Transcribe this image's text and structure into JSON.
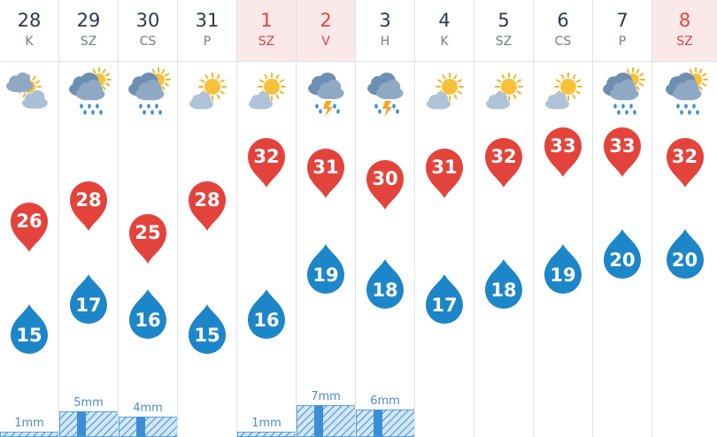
{
  "days": [
    {
      "date": "28",
      "dow": "K",
      "weekend": false,
      "icon": "cloud-sun-icon",
      "max": 26,
      "min": 15,
      "rain": "1mm",
      "rain_level": 0.16
    },
    {
      "date": "29",
      "dow": "SZ",
      "weekend": false,
      "icon": "cloud-sun-rain-icon",
      "max": 28,
      "min": 17,
      "rain": "5mm",
      "rain_level": 0.8
    },
    {
      "date": "30",
      "dow": "CS",
      "weekend": false,
      "icon": "cloud-sun-rain-icon",
      "max": 25,
      "min": 16,
      "rain": "4mm",
      "rain_level": 0.64
    },
    {
      "date": "31",
      "dow": "P",
      "weekend": false,
      "icon": "sun-cloud-icon",
      "max": 28,
      "min": 15,
      "rain": "",
      "rain_level": 0
    },
    {
      "date": "1",
      "dow": "SZ",
      "weekend": true,
      "icon": "sun-cloud-icon",
      "max": 32,
      "min": 16,
      "rain": "1mm",
      "rain_level": 0.16
    },
    {
      "date": "2",
      "dow": "V",
      "weekend": true,
      "icon": "thunderstorm-icon",
      "max": 31,
      "min": 19,
      "rain": "7mm",
      "rain_level": 1.0
    },
    {
      "date": "3",
      "dow": "H",
      "weekend": false,
      "icon": "thunderstorm-icon",
      "max": 30,
      "min": 18,
      "rain": "6mm",
      "rain_level": 0.86
    },
    {
      "date": "4",
      "dow": "K",
      "weekend": false,
      "icon": "sun-cloud-icon",
      "max": 31,
      "min": 17,
      "rain": "",
      "rain_level": 0
    },
    {
      "date": "5",
      "dow": "SZ",
      "weekend": false,
      "icon": "sun-cloud-icon",
      "max": 32,
      "min": 18,
      "rain": "",
      "rain_level": 0
    },
    {
      "date": "6",
      "dow": "CS",
      "weekend": false,
      "icon": "sun-cloud-icon",
      "max": 33,
      "min": 19,
      "rain": "",
      "rain_level": 0
    },
    {
      "date": "7",
      "dow": "P",
      "weekend": false,
      "icon": "cloud-sun-rain-icon",
      "max": 33,
      "min": 20,
      "rain": "",
      "rain_level": 0
    },
    {
      "date": "8",
      "dow": "SZ",
      "weekend": true,
      "icon": "cloud-sun-rain-icon",
      "max": 32,
      "min": 20,
      "rain": "",
      "rain_level": 0
    }
  ],
  "colors": {
    "max_drop": "#e4433c",
    "min_drop": "#1c86c8",
    "rain_bar": "#3a8fd6",
    "weekend_bg": "#fbe9ea",
    "weekend_text": "#e4433c"
  }
}
